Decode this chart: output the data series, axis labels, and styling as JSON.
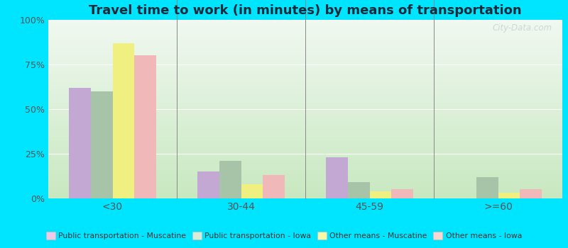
{
  "title": "Travel time to work (in minutes) by means of transportation",
  "categories": [
    "<30",
    "30-44",
    "45-59",
    ">=60"
  ],
  "series": {
    "Public transportation - Muscatine": [
      62,
      15,
      23,
      0
    ],
    "Public transportation - Iowa": [
      60,
      21,
      9,
      12
    ],
    "Other means - Muscatine": [
      87,
      8,
      4,
      3
    ],
    "Other means - Iowa": [
      80,
      13,
      5,
      5
    ]
  },
  "colors": {
    "Public transportation - Muscatine": "#c4a8d4",
    "Public transportation - Iowa": "#a8c4a8",
    "Other means - Muscatine": "#f0f080",
    "Other means - Iowa": "#f0b8b8"
  },
  "legend_colors": {
    "Public transportation - Muscatine": "#f0c8e8",
    "Public transportation - Iowa": "#d8ecd8",
    "Other means - Muscatine": "#f8f8a8",
    "Other means - Iowa": "#f8d8d0"
  },
  "ylim": [
    0,
    100
  ],
  "yticks": [
    0,
    25,
    50,
    75,
    100
  ],
  "ytick_labels": [
    "0%",
    "25%",
    "50%",
    "75%",
    "100%"
  ],
  "bg_top": "#f0f8f0",
  "bg_bottom": "#c8e8c0",
  "outer_background": "#00e5ff",
  "title_fontsize": 13,
  "title_color": "#1a2a3a",
  "bar_width": 0.17,
  "tick_label_color": "#555555",
  "watermark_text": "City-Data.com",
  "watermark_color": "#bbcccc",
  "watermark_alpha": 0.7
}
